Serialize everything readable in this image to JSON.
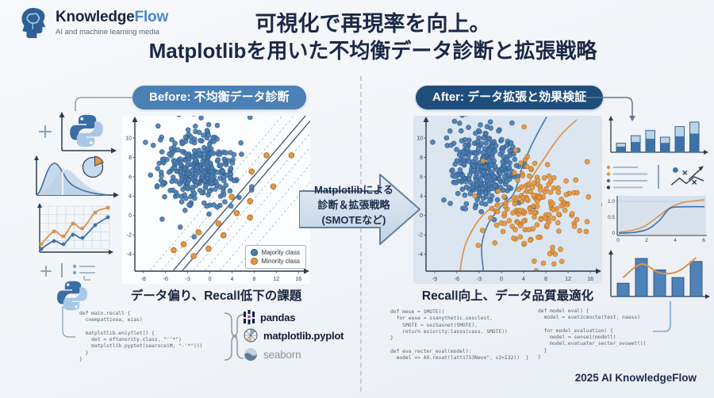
{
  "logo": {
    "brand_dark": "Knowledge",
    "brand_accent": "Flow",
    "tagline": "AI and machine learning media"
  },
  "title": {
    "line1": "可視化で再現率を向上。",
    "line2": "Matplotlibを用いた不均衡データ診断と拡張戦略"
  },
  "before": {
    "pill": "Before: 不均衡データ診断",
    "caption": "データ偏り、Recall低下の課題"
  },
  "after": {
    "pill": "After: データ拡張と効果検証",
    "caption": "Recall向上、データ品質最適化"
  },
  "center_arrow": {
    "lines": [
      "Matplotlibによる",
      "診断＆拡張戦略",
      "(SMOTEなど)"
    ]
  },
  "footer": "2025 AI KnowledgeFlow",
  "colors": {
    "majority": "#4a7db3",
    "majority_edge": "#2c557f",
    "minority": "#e5973f",
    "minority_edge": "#a96a24",
    "pill_before": "#4b80b4",
    "pill_after": "#1f4e7c",
    "axis": "#2c3a4c",
    "right_plot_bg": "#dce6f1"
  },
  "chart_data": [
    {
      "id": "before_scatter",
      "type": "scatter",
      "x_ticks": [
        "-8",
        "-6",
        "-3",
        "0",
        "4",
        "8",
        "12",
        "16"
      ],
      "y_ticks": [
        "10",
        "8",
        "6",
        "4",
        "0",
        "-2",
        "-4"
      ],
      "legend": [
        {
          "label": "Majority class",
          "color": "#4a7db3"
        },
        {
          "label": "Minority class",
          "color": "#e5973f"
        }
      ],
      "series": [
        {
          "name": "Majority class",
          "color": "#4a7db3",
          "edge": "#2c557f",
          "cluster": {
            "cx": 0.36,
            "cy": 0.33,
            "sx": 0.115,
            "sy": 0.135,
            "n": 330,
            "seed": 7
          }
        },
        {
          "name": "Minority class",
          "color": "#e5973f",
          "edge": "#a96a24",
          "points": [
            [
              0.78,
              0.24
            ],
            [
              0.93,
              0.24
            ],
            [
              0.69,
              0.35
            ],
            [
              0.82,
              0.45
            ],
            [
              0.57,
              0.52
            ],
            [
              0.68,
              0.55
            ],
            [
              0.6,
              0.63
            ],
            [
              0.68,
              0.66
            ],
            [
              0.49,
              0.7
            ],
            [
              0.37,
              0.76
            ],
            [
              0.52,
              0.78
            ],
            [
              0.28,
              0.84
            ],
            [
              0.43,
              0.87
            ],
            [
              0.34,
              0.92
            ],
            [
              0.22,
              0.88
            ]
          ]
        }
      ],
      "boundary": {
        "base": [
          [
            0.2,
            1.04
          ],
          [
            1.04,
            -0.06
          ]
        ],
        "offsets": [
          -0.14,
          -0.07,
          0,
          0.055,
          0.12,
          0.19,
          0.28,
          0.37
        ],
        "solid": [
          2,
          3
        ]
      }
    },
    {
      "id": "after_scatter",
      "type": "scatter",
      "x_ticks": [
        "-9",
        "-6",
        "-3",
        "0",
        "4",
        "8",
        "12",
        "16"
      ],
      "y_ticks": [
        "10",
        "8",
        "6",
        "4",
        "0",
        "-2",
        "-4"
      ],
      "series": [
        {
          "name": "Majority class",
          "color": "#4a7db3",
          "edge": "#2c557f",
          "cluster": {
            "cx": 0.33,
            "cy": 0.32,
            "sx": 0.105,
            "sy": 0.13,
            "n": 330,
            "seed": 11
          }
        },
        {
          "name": "Minority class",
          "color": "#e5973f",
          "edge": "#a96a24",
          "cluster": {
            "cx": 0.62,
            "cy": 0.6,
            "sx": 0.145,
            "sy": 0.155,
            "n": 175,
            "seed": 23
          }
        }
      ],
      "curves": [
        {
          "color": "#4a7fae",
          "pts": [
            [
              0.33,
              1.02
            ],
            [
              0.32,
              0.85
            ],
            [
              0.36,
              0.7
            ],
            [
              0.44,
              0.58
            ],
            [
              0.5,
              0.52
            ],
            [
              0.53,
              0.45
            ],
            [
              0.56,
              0.33
            ],
            [
              0.62,
              0.17
            ],
            [
              0.68,
              0.04
            ],
            [
              0.71,
              -0.02
            ]
          ]
        },
        {
          "color": "#dd9247",
          "pts": [
            [
              0.19,
              1.02
            ],
            [
              0.22,
              0.85
            ],
            [
              0.3,
              0.68
            ],
            [
              0.4,
              0.58
            ],
            [
              0.49,
              0.55
            ],
            [
              0.56,
              0.51
            ],
            [
              0.61,
              0.41
            ],
            [
              0.69,
              0.27
            ],
            [
              0.79,
              0.11
            ],
            [
              0.89,
              0.0
            ]
          ]
        }
      ]
    },
    {
      "id": "bars_top",
      "type": "bar",
      "values": [
        0.3,
        0.55,
        0.72,
        0.5,
        0.85,
        1.0
      ]
    },
    {
      "id": "roc",
      "type": "line",
      "y_ticks": [
        "1.0",
        "0.5",
        "0"
      ],
      "x_ticks": [
        "0",
        "2",
        "4",
        "6"
      ],
      "series": [
        {
          "color": "#dd9247",
          "pts": [
            [
              0,
              0.95
            ],
            [
              0.15,
              0.9
            ],
            [
              0.3,
              0.78
            ],
            [
              0.45,
              0.52
            ],
            [
              0.6,
              0.25
            ],
            [
              0.75,
              0.1
            ],
            [
              1,
              0.02
            ]
          ]
        },
        {
          "color": "#3d72a8",
          "pts": [
            [
              0,
              0.98
            ],
            [
              0.2,
              0.95
            ],
            [
              0.35,
              0.85
            ],
            [
              0.48,
              0.6
            ],
            [
              0.58,
              0.3
            ],
            [
              0.68,
              0.23
            ],
            [
              1,
              0.22
            ]
          ]
        }
      ]
    },
    {
      "id": "bars_bottom",
      "type": "bar",
      "values": [
        0.35,
        1.0,
        0.7,
        0.5,
        0.92
      ],
      "trend": [
        0.5,
        0.85,
        0.62,
        0.66,
        1.02
      ]
    }
  ],
  "left_code": {
    "lines": [
      "def main.recall {",
      "  coempattiooa, eias)",
      "",
      "  matplotlib.eniytlet() {",
      "    det = eftanority.class, \"''*\")",
      "    matplotlib.pyptet(searoceiM, \"-'*\")))",
      "  }",
      "}"
    ]
  },
  "libraries": [
    {
      "label": "pandas"
    },
    {
      "label": "matplotlib.pyplot"
    },
    {
      "label": "seaborn"
    }
  ],
  "right_code_1": {
    "lines": [
      "dof mese = SMOTE((",
      "  for ease = ssanythetic.sesclest,",
      "    SMOTE = sezSasnet(SMOTE),",
      "    return exiority:lasss(cass, SMOTE))",
      "}",
      "",
      "def eva_recter_eval(model):",
      "  model <= A9.revat(latt1753Neve\", v2=I32))  }"
    ]
  },
  "right_code_2": {
    "lines": [
      "def model eval) {",
      "  model = evet2cmocte(test, naass)",
      "",
      "  for model_evaluation) {",
      "    medel = sensei(modell)",
      "    model.evatuater_secter_ovowet())",
      "  }",
      "}"
    ]
  }
}
